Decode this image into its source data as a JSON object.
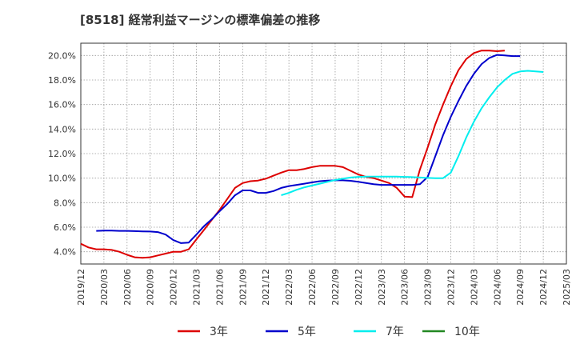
{
  "chart_data": {
    "type": "line",
    "title": "[8518]  経常利益マージンの標準偏差の推移",
    "xlabel": "",
    "ylabel": "",
    "ylim": [
      3.0,
      21.0
    ],
    "yticks": [
      "4.0%",
      "6.0%",
      "8.0%",
      "10.0%",
      "12.0%",
      "14.0%",
      "16.0%",
      "18.0%",
      "20.0%"
    ],
    "ytick_values": [
      4,
      6,
      8,
      10,
      12,
      14,
      16,
      18,
      20
    ],
    "xticks": [
      "2019/12",
      "2020/03",
      "2020/06",
      "2020/09",
      "2020/12",
      "2021/03",
      "2021/06",
      "2021/09",
      "2021/12",
      "2022/03",
      "2022/06",
      "2022/09",
      "2022/12",
      "2023/03",
      "2023/06",
      "2023/09",
      "2023/12",
      "2024/03",
      "2024/06",
      "2024/09",
      "2024/12",
      "2025/03"
    ],
    "grid": true,
    "legend_position": "bottom",
    "series": [
      {
        "name": "3年",
        "color": "#dd0000",
        "start": "2019/12",
        "values": [
          4.65,
          4.35,
          4.2,
          4.2,
          4.15,
          4.0,
          3.75,
          3.55,
          3.5,
          3.55,
          3.7,
          3.85,
          4.0,
          4.0,
          4.2,
          5.0,
          5.8,
          6.6,
          7.4,
          8.3,
          9.2,
          9.6,
          9.75,
          9.8,
          9.95,
          10.2,
          10.45,
          10.65,
          10.65,
          10.75,
          10.9,
          11.0,
          11.0,
          11.0,
          10.9,
          10.6,
          10.3,
          10.1,
          10.0,
          9.8,
          9.6,
          9.2,
          8.5,
          8.45,
          10.7,
          12.5,
          14.4,
          16.0,
          17.5,
          18.8,
          19.7,
          20.2,
          20.4,
          20.4,
          20.35,
          20.4
        ]
      },
      {
        "name": "5年",
        "color": "#0000cc",
        "start": "2020/02",
        "values": [
          5.7,
          5.72,
          5.72,
          5.7,
          5.7,
          5.68,
          5.66,
          5.65,
          5.6,
          5.4,
          4.95,
          4.7,
          4.75,
          5.4,
          6.1,
          6.65,
          7.3,
          7.9,
          8.6,
          9.0,
          9.0,
          8.8,
          8.8,
          8.95,
          9.2,
          9.35,
          9.45,
          9.55,
          9.65,
          9.75,
          9.8,
          9.82,
          9.82,
          9.78,
          9.7,
          9.6,
          9.5,
          9.45,
          9.45,
          9.45,
          9.45,
          9.45,
          9.5,
          10.1,
          11.8,
          13.5,
          15.0,
          16.3,
          17.5,
          18.5,
          19.3,
          19.8,
          20.05,
          20.0,
          19.95,
          19.95
        ]
      },
      {
        "name": "7年",
        "color": "#00eeee",
        "start": "2022/02",
        "values": [
          8.6,
          8.8,
          9.05,
          9.25,
          9.4,
          9.55,
          9.7,
          9.85,
          9.95,
          10.05,
          10.1,
          10.12,
          10.12,
          10.12,
          10.12,
          10.12,
          10.1,
          10.08,
          10.05,
          10.02,
          10.0,
          10.0,
          10.45,
          11.8,
          13.3,
          14.6,
          15.7,
          16.6,
          17.4,
          18.0,
          18.5,
          18.7,
          18.75,
          18.7,
          18.65
        ]
      },
      {
        "name": "10年",
        "color": "#228822",
        "start": "",
        "values": []
      }
    ]
  }
}
